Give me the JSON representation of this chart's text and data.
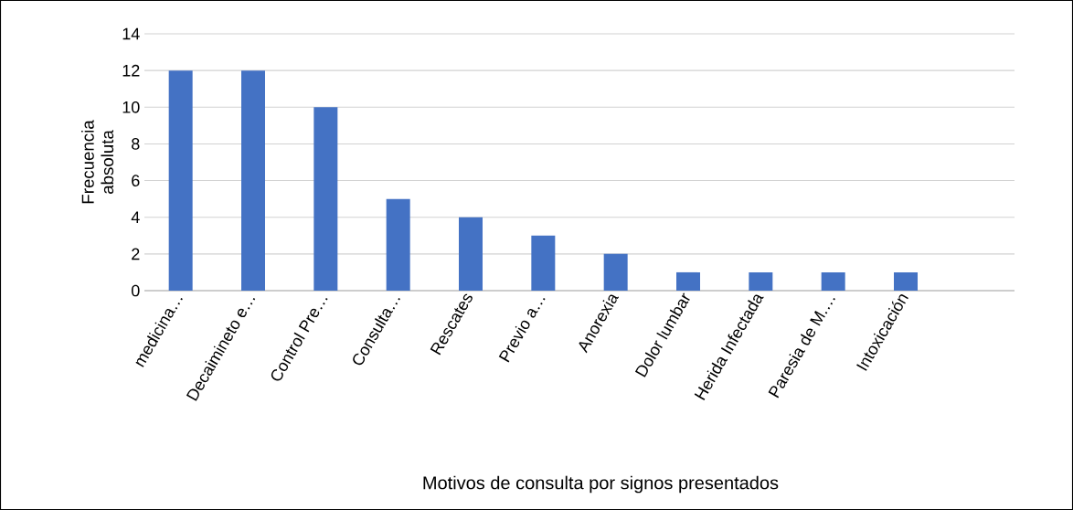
{
  "chart_data": {
    "type": "bar",
    "xlabel": "Motivos de consulta por signos presentados",
    "ylabel": "Frecuencia absoluta",
    "categories": [
      "medicina…",
      "Decaimineto e…",
      "Control Pre…",
      "Consulta…",
      "Rescates",
      "Previo a…",
      "Anorexia",
      "Dolor lumbar",
      "Herida Infectada",
      "Paresia de M.…",
      "Intoxicación",
      null
    ],
    "values": [
      12,
      12,
      10,
      5,
      4,
      3,
      2,
      1,
      1,
      1,
      1,
      null
    ],
    "color": "#4472c4",
    "ylim": [
      0,
      14
    ],
    "yticks": [
      0,
      2,
      4,
      6,
      8,
      10,
      12,
      14
    ],
    "grid": "y"
  }
}
